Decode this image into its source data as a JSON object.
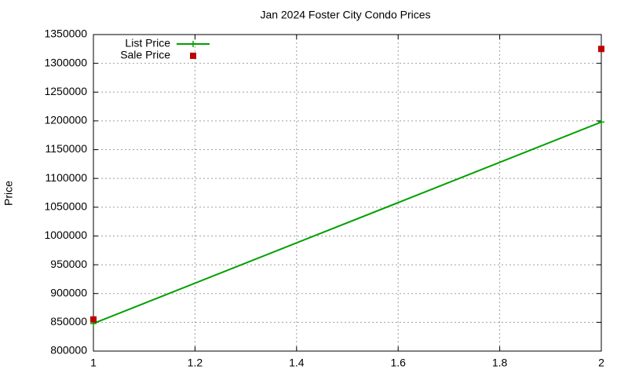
{
  "chart_data": {
    "type": "line",
    "title": "Jan 2024 Foster City Condo Prices",
    "ylabel": "Price",
    "x": [
      1,
      2
    ],
    "series": [
      {
        "name": "List Price",
        "color": "#00a000",
        "style": "linespoints",
        "values": [
          848000,
          1198000
        ]
      },
      {
        "name": "Sale Price",
        "color": "#c00000",
        "style": "points",
        "values": [
          855000,
          1325000
        ]
      }
    ],
    "xlim": [
      1,
      2
    ],
    "xticks": [
      1,
      1.2,
      1.4,
      1.6,
      1.8,
      2
    ],
    "ylim": [
      800000,
      1350000
    ],
    "yticks": [
      800000,
      850000,
      900000,
      950000,
      1000000,
      1050000,
      1100000,
      1150000,
      1200000,
      1250000,
      1300000,
      1350000
    ],
    "grid": true,
    "legend": "top-left"
  }
}
